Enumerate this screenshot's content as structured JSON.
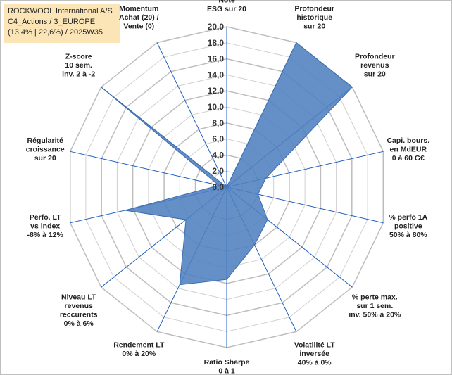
{
  "header": {
    "line1": "ROCKWOOL International A/S",
    "line2": "C4_Actions / 3_EUROPE",
    "line3": "(13,4% | 22,6%) / 2025W35"
  },
  "chart_data": {
    "type": "radar",
    "title": "",
    "rlim": [
      0,
      20
    ],
    "ticks": [
      "0,0",
      "2,0",
      "4,0",
      "6,0",
      "8,0",
      "10,0",
      "12,0",
      "14,0",
      "16,0",
      "18,0",
      "20,0"
    ],
    "tick_values": [
      0,
      2,
      4,
      6,
      8,
      10,
      12,
      14,
      16,
      18,
      20
    ],
    "axes": [
      [
        "Note",
        "ESG sur 20"
      ],
      [
        "Profondeur",
        "historique",
        "sur 20"
      ],
      [
        "Profondeur",
        "revenus",
        "sur 20"
      ],
      [
        "Capi. bours.",
        "en MdEUR",
        "0 à 60 G€"
      ],
      [
        "% perfo 1A",
        "positive",
        "50% à 80%"
      ],
      [
        "% perte max.",
        "sur 1 sem.",
        "inv. 50% à 20%"
      ],
      [
        "Volatilité LT",
        "inversée",
        "40% à 0%"
      ],
      [
        "Ratio Sharpe",
        "0 à 1"
      ],
      [
        "Rendement LT",
        "0% à 20%"
      ],
      [
        "Niveau LT",
        "revenus",
        "reccurents",
        "0% à 6%"
      ],
      [
        "Perfo. LT",
        "vs index",
        "-8% à 12%"
      ],
      [
        "Régularité",
        "croissance",
        "sur 20"
      ],
      [
        "Z-score",
        "10 sem.",
        "inv. 2 à -2"
      ],
      [
        "Momentum",
        "Achat (20) /",
        "Vente (0)"
      ]
    ],
    "series": [
      {
        "values": [
          0,
          20,
          20,
          5,
          4,
          6.5,
          8,
          11.5,
          13.5,
          6.5,
          13,
          1,
          20,
          0
        ],
        "color": "#4f7fbf"
      }
    ],
    "grid": true
  }
}
